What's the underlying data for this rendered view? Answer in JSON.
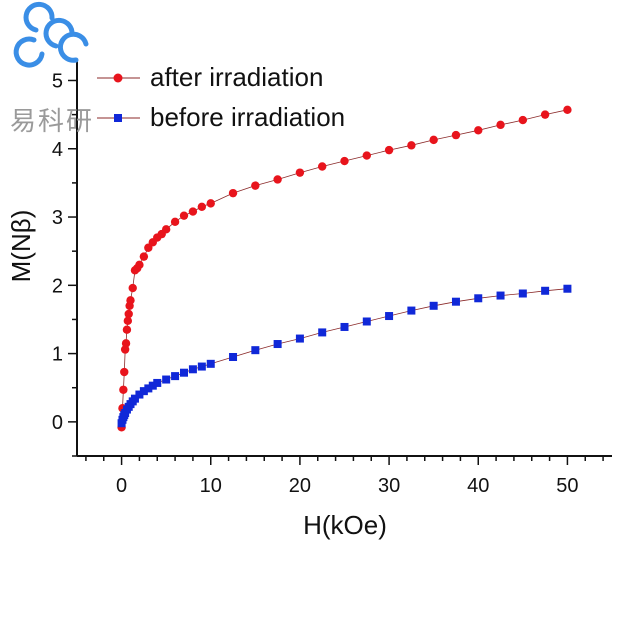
{
  "watermark": {
    "text": "易科研",
    "color": "#3a8ee6"
  },
  "chart_data": {
    "type": "scatter",
    "xlabel": "H(kOe)",
    "ylabel": "M(Nβ)",
    "xlim": [
      -5,
      55
    ],
    "ylim": [
      -0.5,
      5.3
    ],
    "xticks": [
      0,
      10,
      20,
      30,
      40,
      50
    ],
    "yticks": [
      0,
      1,
      2,
      3,
      4,
      5
    ],
    "legend_position": "top-left",
    "grid": false,
    "series": [
      {
        "name": "after irradiation",
        "color": "#e8141c",
        "marker": "circle",
        "line": true,
        "x": [
          0,
          0.1,
          0.2,
          0.3,
          0.4,
          0.5,
          0.6,
          0.7,
          0.8,
          0.9,
          1.0,
          1.25,
          1.5,
          1.75,
          2.0,
          2.5,
          3.0,
          3.5,
          4.0,
          4.5,
          5.0,
          6.0,
          7.0,
          8.0,
          9.0,
          10.0,
          12.5,
          15,
          17.5,
          20,
          22.5,
          25,
          27.5,
          30,
          32.5,
          35,
          37.5,
          40,
          42.5,
          45,
          47.5,
          50
        ],
        "y": [
          -0.08,
          0.2,
          0.47,
          0.73,
          1.06,
          1.15,
          1.35,
          1.48,
          1.58,
          1.7,
          1.78,
          1.96,
          2.22,
          2.25,
          2.3,
          2.42,
          2.55,
          2.63,
          2.7,
          2.75,
          2.82,
          2.93,
          3.02,
          3.08,
          3.15,
          3.2,
          3.35,
          3.46,
          3.55,
          3.65,
          3.74,
          3.82,
          3.9,
          3.98,
          4.05,
          4.13,
          4.2,
          4.27,
          4.35,
          4.42,
          4.5,
          4.57
        ]
      },
      {
        "name": "before irradiation",
        "color": "#1028d8",
        "marker": "square",
        "line": true,
        "x": [
          0,
          0.1,
          0.2,
          0.3,
          0.4,
          0.6,
          0.8,
          1.0,
          1.25,
          1.5,
          2.0,
          2.5,
          3.0,
          3.5,
          4.0,
          5.0,
          6.0,
          7.0,
          8.0,
          9.0,
          10.0,
          12.5,
          15,
          17.5,
          20,
          22.5,
          25,
          27.5,
          30,
          32.5,
          35,
          37.5,
          40,
          42.5,
          45,
          47.5,
          50
        ],
        "y": [
          -0.02,
          0.03,
          0.07,
          0.1,
          0.13,
          0.18,
          0.22,
          0.26,
          0.3,
          0.34,
          0.4,
          0.45,
          0.49,
          0.53,
          0.57,
          0.62,
          0.67,
          0.72,
          0.77,
          0.81,
          0.85,
          0.95,
          1.05,
          1.14,
          1.22,
          1.31,
          1.39,
          1.47,
          1.55,
          1.63,
          1.7,
          1.76,
          1.81,
          1.85,
          1.88,
          1.92,
          1.95
        ]
      }
    ]
  }
}
